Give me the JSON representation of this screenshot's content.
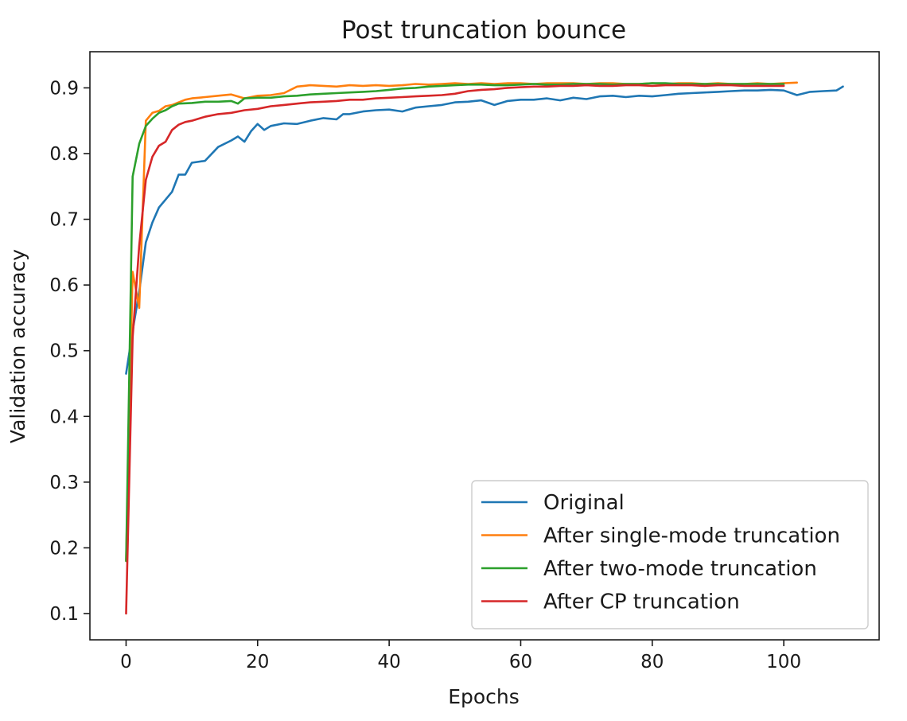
{
  "chart_data": {
    "type": "line",
    "title": "Post truncation bounce",
    "xlabel": "Epochs",
    "ylabel": "Validation accuracy",
    "xlim": [
      -5.5,
      114.5
    ],
    "ylim": [
      0.06,
      0.955
    ],
    "xticks": [
      0,
      20,
      40,
      60,
      80,
      100
    ],
    "yticks": [
      0.1,
      0.2,
      0.3,
      0.4,
      0.5,
      0.6,
      0.7,
      0.8,
      0.9
    ],
    "grid": false,
    "legend": "lower right",
    "series": [
      {
        "name": "Original",
        "color": "#1f77b4",
        "x": [
          0,
          1,
          2,
          3,
          4,
          5,
          6,
          7,
          8,
          9,
          10,
          12,
          14,
          16,
          17,
          18,
          19,
          20,
          21,
          22,
          24,
          26,
          28,
          30,
          31,
          32,
          33,
          34,
          36,
          38,
          40,
          42,
          44,
          46,
          48,
          50,
          52,
          54,
          56,
          58,
          60,
          62,
          64,
          66,
          68,
          70,
          72,
          74,
          76,
          78,
          80,
          82,
          84,
          86,
          88,
          90,
          92,
          94,
          96,
          98,
          100,
          102,
          104,
          106,
          108,
          109
        ],
        "y": [
          0.465,
          0.53,
          0.59,
          0.665,
          0.695,
          0.718,
          0.73,
          0.742,
          0.768,
          0.768,
          0.786,
          0.789,
          0.81,
          0.82,
          0.826,
          0.818,
          0.834,
          0.845,
          0.836,
          0.842,
          0.846,
          0.845,
          0.85,
          0.854,
          0.853,
          0.852,
          0.86,
          0.86,
          0.864,
          0.866,
          0.867,
          0.864,
          0.87,
          0.872,
          0.874,
          0.878,
          0.879,
          0.881,
          0.874,
          0.88,
          0.882,
          0.882,
          0.884,
          0.881,
          0.885,
          0.883,
          0.887,
          0.888,
          0.886,
          0.888,
          0.887,
          0.889,
          0.891,
          0.892,
          0.893,
          0.894,
          0.895,
          0.896,
          0.896,
          0.897,
          0.896,
          0.889,
          0.894,
          0.895,
          0.896,
          0.902
        ]
      },
      {
        "name": "After single-mode truncation",
        "color": "#ff7f0e",
        "x": [
          0,
          1,
          2,
          3,
          4,
          5,
          6,
          7,
          8,
          9,
          10,
          12,
          14,
          16,
          18,
          20,
          22,
          24,
          26,
          28,
          30,
          32,
          34,
          36,
          38,
          40,
          42,
          44,
          46,
          48,
          50,
          52,
          54,
          56,
          58,
          60,
          62,
          64,
          66,
          68,
          70,
          72,
          74,
          76,
          78,
          80,
          82,
          84,
          86,
          88,
          90,
          92,
          94,
          96,
          98,
          100,
          102
        ],
        "y": [
          0.18,
          0.62,
          0.565,
          0.85,
          0.862,
          0.865,
          0.872,
          0.874,
          0.878,
          0.882,
          0.884,
          0.886,
          0.888,
          0.89,
          0.884,
          0.888,
          0.889,
          0.892,
          0.902,
          0.904,
          0.903,
          0.902,
          0.904,
          0.903,
          0.904,
          0.903,
          0.904,
          0.906,
          0.905,
          0.906,
          0.907,
          0.906,
          0.907,
          0.906,
          0.907,
          0.907,
          0.906,
          0.907,
          0.907,
          0.907,
          0.906,
          0.907,
          0.907,
          0.906,
          0.906,
          0.907,
          0.906,
          0.907,
          0.907,
          0.906,
          0.907,
          0.906,
          0.906,
          0.907,
          0.906,
          0.907,
          0.908
        ]
      },
      {
        "name": "After two-mode truncation",
        "color": "#2ca02c",
        "x": [
          0,
          1,
          2,
          3,
          4,
          5,
          6,
          7,
          8,
          10,
          12,
          14,
          16,
          17,
          18,
          20,
          22,
          24,
          26,
          28,
          30,
          32,
          34,
          36,
          38,
          40,
          42,
          44,
          46,
          48,
          50,
          52,
          54,
          56,
          58,
          60,
          62,
          64,
          66,
          68,
          70,
          72,
          74,
          76,
          78,
          80,
          82,
          84,
          86,
          88,
          90,
          92,
          94,
          96,
          98,
          100
        ],
        "y": [
          0.18,
          0.765,
          0.815,
          0.842,
          0.853,
          0.862,
          0.866,
          0.872,
          0.876,
          0.877,
          0.879,
          0.879,
          0.88,
          0.876,
          0.884,
          0.885,
          0.885,
          0.887,
          0.888,
          0.89,
          0.891,
          0.892,
          0.893,
          0.894,
          0.895,
          0.897,
          0.899,
          0.9,
          0.902,
          0.903,
          0.904,
          0.905,
          0.905,
          0.904,
          0.904,
          0.905,
          0.906,
          0.905,
          0.905,
          0.906,
          0.906,
          0.906,
          0.905,
          0.906,
          0.906,
          0.907,
          0.907,
          0.906,
          0.906,
          0.906,
          0.906,
          0.906,
          0.906,
          0.906,
          0.906,
          0.906
        ]
      },
      {
        "name": "After CP truncation",
        "color": "#d62728",
        "x": [
          0,
          1,
          2,
          3,
          4,
          5,
          6,
          7,
          8,
          9,
          10,
          12,
          14,
          16,
          18,
          20,
          22,
          24,
          26,
          28,
          30,
          32,
          34,
          36,
          38,
          40,
          42,
          44,
          46,
          48,
          50,
          52,
          54,
          56,
          58,
          60,
          62,
          64,
          66,
          68,
          70,
          72,
          74,
          76,
          78,
          80,
          82,
          84,
          86,
          88,
          90,
          92,
          94,
          96,
          98,
          100
        ],
        "y": [
          0.1,
          0.52,
          0.66,
          0.76,
          0.795,
          0.812,
          0.818,
          0.836,
          0.844,
          0.848,
          0.85,
          0.856,
          0.86,
          0.862,
          0.866,
          0.868,
          0.872,
          0.874,
          0.876,
          0.878,
          0.879,
          0.88,
          0.882,
          0.882,
          0.884,
          0.885,
          0.886,
          0.887,
          0.888,
          0.889,
          0.891,
          0.895,
          0.897,
          0.898,
          0.9,
          0.901,
          0.902,
          0.902,
          0.903,
          0.903,
          0.904,
          0.903,
          0.903,
          0.904,
          0.904,
          0.903,
          0.904,
          0.904,
          0.904,
          0.903,
          0.904,
          0.904,
          0.903,
          0.903,
          0.903,
          0.903
        ]
      }
    ]
  }
}
